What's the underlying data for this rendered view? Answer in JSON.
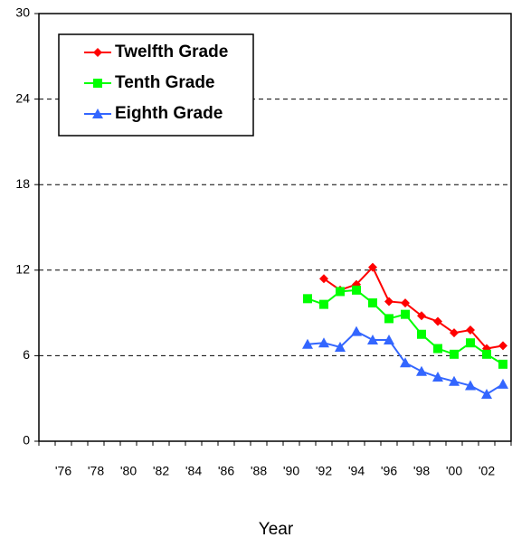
{
  "chart_data": {
    "type": "line",
    "x_label": "Year",
    "categories": [
      null,
      "'76",
      null,
      "'78",
      null,
      "'80",
      null,
      "'82",
      null,
      "'84",
      null,
      "'86",
      null,
      "'88",
      null,
      "'90",
      null,
      "'92",
      null,
      "'94",
      null,
      "'96",
      null,
      "'98",
      null,
      "'00",
      null,
      "'02",
      null
    ],
    "series": [
      {
        "name": "Twelfth Grade",
        "color": "#ff0000",
        "marker": "diamond",
        "values": [
          null,
          null,
          null,
          null,
          null,
          null,
          null,
          null,
          null,
          null,
          null,
          null,
          null,
          null,
          null,
          null,
          null,
          11.4,
          10.6,
          11.0,
          12.2,
          9.8,
          9.7,
          8.8,
          8.4,
          7.6,
          7.8,
          6.5,
          6.7
        ]
      },
      {
        "name": "Tenth Grade",
        "color": "#00ff00",
        "marker": "square",
        "values": [
          null,
          null,
          null,
          null,
          null,
          null,
          null,
          null,
          null,
          null,
          null,
          null,
          null,
          null,
          null,
          null,
          10.0,
          9.6,
          10.5,
          10.6,
          9.7,
          8.6,
          8.9,
          7.5,
          6.5,
          6.1,
          6.9,
          6.1,
          5.4
        ]
      },
      {
        "name": "Eighth Grade",
        "color": "#3366ff",
        "marker": "triangle",
        "values": [
          null,
          null,
          null,
          null,
          null,
          null,
          null,
          null,
          null,
          null,
          null,
          null,
          null,
          null,
          null,
          null,
          6.8,
          6.9,
          6.6,
          7.7,
          7.1,
          7.1,
          5.5,
          4.9,
          4.5,
          4.2,
          3.9,
          3.3,
          4.0
        ]
      }
    ],
    "ylim": [
      0,
      30
    ],
    "yticks": [
      0,
      6,
      12,
      18,
      24,
      30
    ],
    "grid": true,
    "legend": "top-left"
  }
}
